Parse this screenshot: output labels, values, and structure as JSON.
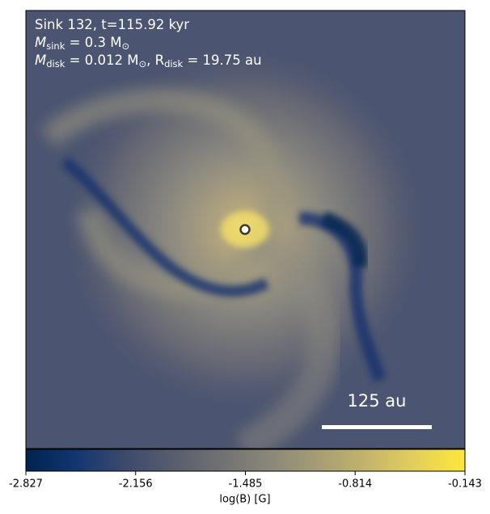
{
  "chart_data": {
    "type": "image",
    "annotations": [
      [
        "Sink 132, t=115.92 kyr"
      ],
      [
        "M",
        "sink",
        " = 0.3 M",
        "⊙"
      ],
      [
        "M",
        "disk",
        " = 0.012 M",
        "⊙",
        ", R",
        "disk",
        " = 19.75 au"
      ]
    ],
    "scale_bar": "125 au",
    "colorbar": {
      "label": "log(B) [G]",
      "lim": [
        -2.827,
        -0.143
      ],
      "ticks": [
        -2.827,
        -2.156,
        -1.485,
        -0.814,
        -0.143
      ],
      "colormap": [
        "#00224e",
        "#123570",
        "#3b496c",
        "#575d6d",
        "#707173",
        "#8a8779",
        "#a69d75",
        "#c4b56c",
        "#e4cf5b",
        "#fee838"
      ]
    }
  }
}
